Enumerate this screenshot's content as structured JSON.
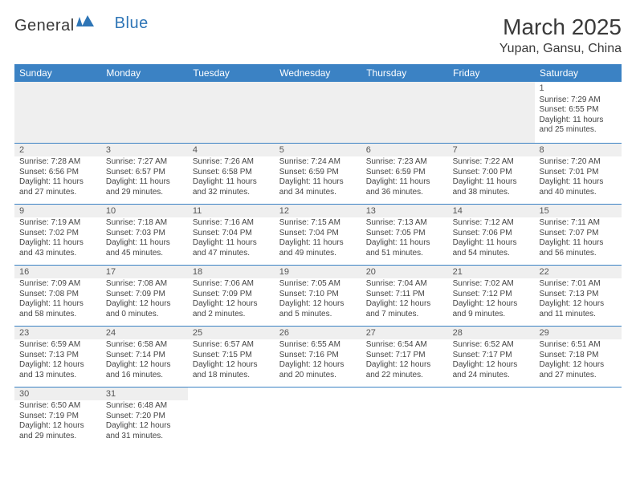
{
  "logo": {
    "text1": "General",
    "text2": "Blue"
  },
  "title": {
    "month_year": "March 2025",
    "location": "Yupan, Gansu, China"
  },
  "colors": {
    "header_bg": "#3b82c4",
    "header_text": "#ffffff",
    "cell_border": "#3b82c4",
    "blank_bg": "#efefef",
    "text": "#444444",
    "logo_gray": "#3a3a3a",
    "logo_blue": "#2e75b6"
  },
  "weekdays": [
    "Sunday",
    "Monday",
    "Tuesday",
    "Wednesday",
    "Thursday",
    "Friday",
    "Saturday"
  ],
  "weeks": [
    [
      null,
      null,
      null,
      null,
      null,
      null,
      {
        "n": "1",
        "sr": "Sunrise: 7:29 AM",
        "ss": "Sunset: 6:55 PM",
        "dl1": "Daylight: 11 hours",
        "dl2": "and 25 minutes."
      }
    ],
    [
      {
        "n": "2",
        "sr": "Sunrise: 7:28 AM",
        "ss": "Sunset: 6:56 PM",
        "dl1": "Daylight: 11 hours",
        "dl2": "and 27 minutes."
      },
      {
        "n": "3",
        "sr": "Sunrise: 7:27 AM",
        "ss": "Sunset: 6:57 PM",
        "dl1": "Daylight: 11 hours",
        "dl2": "and 29 minutes."
      },
      {
        "n": "4",
        "sr": "Sunrise: 7:26 AM",
        "ss": "Sunset: 6:58 PM",
        "dl1": "Daylight: 11 hours",
        "dl2": "and 32 minutes."
      },
      {
        "n": "5",
        "sr": "Sunrise: 7:24 AM",
        "ss": "Sunset: 6:59 PM",
        "dl1": "Daylight: 11 hours",
        "dl2": "and 34 minutes."
      },
      {
        "n": "6",
        "sr": "Sunrise: 7:23 AM",
        "ss": "Sunset: 6:59 PM",
        "dl1": "Daylight: 11 hours",
        "dl2": "and 36 minutes."
      },
      {
        "n": "7",
        "sr": "Sunrise: 7:22 AM",
        "ss": "Sunset: 7:00 PM",
        "dl1": "Daylight: 11 hours",
        "dl2": "and 38 minutes."
      },
      {
        "n": "8",
        "sr": "Sunrise: 7:20 AM",
        "ss": "Sunset: 7:01 PM",
        "dl1": "Daylight: 11 hours",
        "dl2": "and 40 minutes."
      }
    ],
    [
      {
        "n": "9",
        "sr": "Sunrise: 7:19 AM",
        "ss": "Sunset: 7:02 PM",
        "dl1": "Daylight: 11 hours",
        "dl2": "and 43 minutes."
      },
      {
        "n": "10",
        "sr": "Sunrise: 7:18 AM",
        "ss": "Sunset: 7:03 PM",
        "dl1": "Daylight: 11 hours",
        "dl2": "and 45 minutes."
      },
      {
        "n": "11",
        "sr": "Sunrise: 7:16 AM",
        "ss": "Sunset: 7:04 PM",
        "dl1": "Daylight: 11 hours",
        "dl2": "and 47 minutes."
      },
      {
        "n": "12",
        "sr": "Sunrise: 7:15 AM",
        "ss": "Sunset: 7:04 PM",
        "dl1": "Daylight: 11 hours",
        "dl2": "and 49 minutes."
      },
      {
        "n": "13",
        "sr": "Sunrise: 7:13 AM",
        "ss": "Sunset: 7:05 PM",
        "dl1": "Daylight: 11 hours",
        "dl2": "and 51 minutes."
      },
      {
        "n": "14",
        "sr": "Sunrise: 7:12 AM",
        "ss": "Sunset: 7:06 PM",
        "dl1": "Daylight: 11 hours",
        "dl2": "and 54 minutes."
      },
      {
        "n": "15",
        "sr": "Sunrise: 7:11 AM",
        "ss": "Sunset: 7:07 PM",
        "dl1": "Daylight: 11 hours",
        "dl2": "and 56 minutes."
      }
    ],
    [
      {
        "n": "16",
        "sr": "Sunrise: 7:09 AM",
        "ss": "Sunset: 7:08 PM",
        "dl1": "Daylight: 11 hours",
        "dl2": "and 58 minutes."
      },
      {
        "n": "17",
        "sr": "Sunrise: 7:08 AM",
        "ss": "Sunset: 7:09 PM",
        "dl1": "Daylight: 12 hours",
        "dl2": "and 0 minutes."
      },
      {
        "n": "18",
        "sr": "Sunrise: 7:06 AM",
        "ss": "Sunset: 7:09 PM",
        "dl1": "Daylight: 12 hours",
        "dl2": "and 2 minutes."
      },
      {
        "n": "19",
        "sr": "Sunrise: 7:05 AM",
        "ss": "Sunset: 7:10 PM",
        "dl1": "Daylight: 12 hours",
        "dl2": "and 5 minutes."
      },
      {
        "n": "20",
        "sr": "Sunrise: 7:04 AM",
        "ss": "Sunset: 7:11 PM",
        "dl1": "Daylight: 12 hours",
        "dl2": "and 7 minutes."
      },
      {
        "n": "21",
        "sr": "Sunrise: 7:02 AM",
        "ss": "Sunset: 7:12 PM",
        "dl1": "Daylight: 12 hours",
        "dl2": "and 9 minutes."
      },
      {
        "n": "22",
        "sr": "Sunrise: 7:01 AM",
        "ss": "Sunset: 7:13 PM",
        "dl1": "Daylight: 12 hours",
        "dl2": "and 11 minutes."
      }
    ],
    [
      {
        "n": "23",
        "sr": "Sunrise: 6:59 AM",
        "ss": "Sunset: 7:13 PM",
        "dl1": "Daylight: 12 hours",
        "dl2": "and 13 minutes."
      },
      {
        "n": "24",
        "sr": "Sunrise: 6:58 AM",
        "ss": "Sunset: 7:14 PM",
        "dl1": "Daylight: 12 hours",
        "dl2": "and 16 minutes."
      },
      {
        "n": "25",
        "sr": "Sunrise: 6:57 AM",
        "ss": "Sunset: 7:15 PM",
        "dl1": "Daylight: 12 hours",
        "dl2": "and 18 minutes."
      },
      {
        "n": "26",
        "sr": "Sunrise: 6:55 AM",
        "ss": "Sunset: 7:16 PM",
        "dl1": "Daylight: 12 hours",
        "dl2": "and 20 minutes."
      },
      {
        "n": "27",
        "sr": "Sunrise: 6:54 AM",
        "ss": "Sunset: 7:17 PM",
        "dl1": "Daylight: 12 hours",
        "dl2": "and 22 minutes."
      },
      {
        "n": "28",
        "sr": "Sunrise: 6:52 AM",
        "ss": "Sunset: 7:17 PM",
        "dl1": "Daylight: 12 hours",
        "dl2": "and 24 minutes."
      },
      {
        "n": "29",
        "sr": "Sunrise: 6:51 AM",
        "ss": "Sunset: 7:18 PM",
        "dl1": "Daylight: 12 hours",
        "dl2": "and 27 minutes."
      }
    ],
    [
      {
        "n": "30",
        "sr": "Sunrise: 6:50 AM",
        "ss": "Sunset: 7:19 PM",
        "dl1": "Daylight: 12 hours",
        "dl2": "and 29 minutes."
      },
      {
        "n": "31",
        "sr": "Sunrise: 6:48 AM",
        "ss": "Sunset: 7:20 PM",
        "dl1": "Daylight: 12 hours",
        "dl2": "and 31 minutes."
      },
      null,
      null,
      null,
      null,
      null
    ]
  ]
}
